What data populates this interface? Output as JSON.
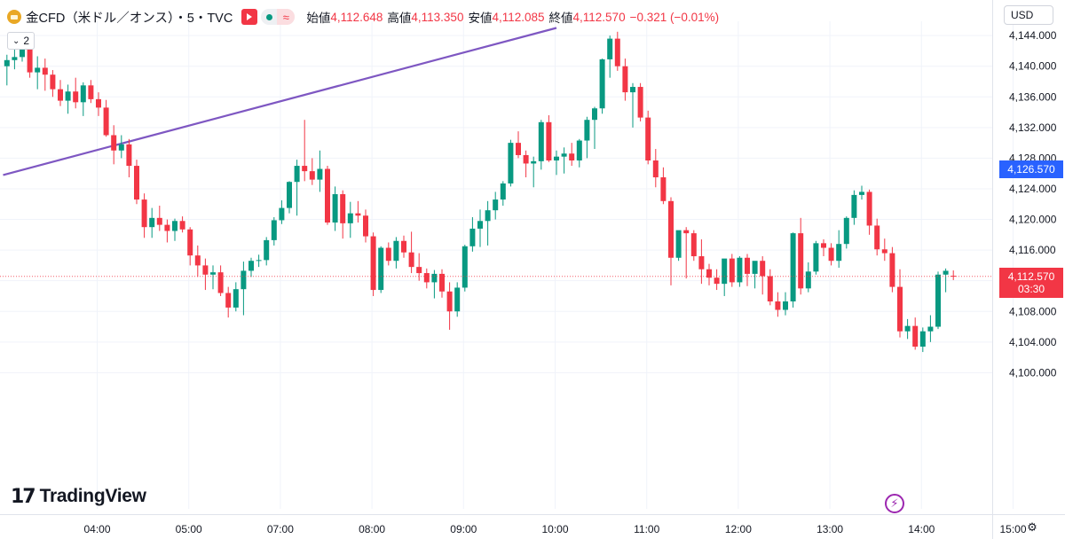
{
  "header": {
    "title": "金CFD（米ドル／オンス）・5・TVC",
    "open_label": "始値",
    "open_value": "4,112.648",
    "high_label": "高値",
    "high_value": "4,113.350",
    "low_label": "安値",
    "low_value": "4,112.085",
    "close_label": "終値",
    "close_value": "4,112.570",
    "change_value": "−0.321 (−0.01%)"
  },
  "indicator_count": "2",
  "currency": "USD",
  "logo_text": "TradingView",
  "colors": {
    "up": "#089981",
    "down": "#f23645",
    "trendline": "#7e57c2",
    "current_tag": "#f23645",
    "level_tag": "#2962ff",
    "grid": "#f0f3fa"
  },
  "price_tags": {
    "level_value": "4,126.570",
    "current_value": "4,112.570",
    "countdown": "03:30"
  },
  "chart_data": {
    "type": "candlestick",
    "title": "",
    "xlabel": "",
    "ylabel": "",
    "ylim": [
      4098.0,
      4145.0
    ],
    "y_ticks": [
      4100,
      4104,
      4108,
      4112,
      4116,
      4120,
      4124,
      4128,
      4132,
      4136,
      4140,
      4144
    ],
    "y_tick_labels": [
      "4,100.000",
      "4,104.000",
      "4,108.000",
      "4,112.000",
      "4,116.000",
      "4,120.000",
      "4,124.000",
      "4,128.000",
      "4,132.000",
      "4,136.000",
      "4,140.000",
      "4,144.000"
    ],
    "x_tick_labels": [
      {
        "bar": 12,
        "label": "04:00"
      },
      {
        "bar": 24,
        "label": "05:00"
      },
      {
        "bar": 36,
        "label": "07:00"
      },
      {
        "bar": 48,
        "label": "08:00"
      },
      {
        "bar": 60,
        "label": "09:00"
      },
      {
        "bar": 72,
        "label": "10:00"
      },
      {
        "bar": 84,
        "label": "11:00"
      },
      {
        "bar": 96,
        "label": "12:00"
      },
      {
        "bar": 108,
        "label": "13:00"
      },
      {
        "bar": 120,
        "label": "14:00"
      },
      {
        "bar": 132,
        "label": "15:00"
      }
    ],
    "grid": true,
    "candles_ohlc": [
      [
        4140.0,
        4141.5,
        4137.5,
        4140.8
      ],
      [
        4140.8,
        4142.6,
        4139.6,
        4141.2
      ],
      [
        4141.2,
        4143.0,
        4140.6,
        4142.2
      ],
      [
        4142.2,
        4143.3,
        4138.5,
        4139.2
      ],
      [
        4139.2,
        4141.3,
        4137.0,
        4139.8
      ],
      [
        4139.8,
        4141.0,
        4136.8,
        4138.9
      ],
      [
        4138.9,
        4139.5,
        4136.0,
        4137.0
      ],
      [
        4137.0,
        4138.2,
        4134.8,
        4135.5
      ],
      [
        4135.5,
        4137.6,
        4133.8,
        4136.7
      ],
      [
        4136.7,
        4138.5,
        4134.5,
        4135.3
      ],
      [
        4135.3,
        4137.9,
        4133.5,
        4137.5
      ],
      [
        4137.5,
        4138.2,
        4135.2,
        4135.7
      ],
      [
        4135.7,
        4136.6,
        4133.5,
        4134.6
      ],
      [
        4134.6,
        4135.6,
        4130.8,
        4131.0
      ],
      [
        4131.0,
        4132.3,
        4127.2,
        4129.0
      ],
      [
        4129.0,
        4131.0,
        4128.0,
        4129.8
      ],
      [
        4129.8,
        4130.5,
        4125.5,
        4127.0
      ],
      [
        4127.0,
        4127.8,
        4122.0,
        4122.6
      ],
      [
        4122.6,
        4123.4,
        4117.6,
        4119.0
      ],
      [
        4119.0,
        4121.5,
        4117.6,
        4120.2
      ],
      [
        4120.2,
        4121.8,
        4118.5,
        4119.3
      ],
      [
        4119.3,
        4120.0,
        4117.0,
        4118.5
      ],
      [
        4118.5,
        4120.1,
        4117.2,
        4119.8
      ],
      [
        4119.8,
        4120.4,
        4118.3,
        4118.7
      ],
      [
        4118.7,
        4119.0,
        4114.0,
        4115.3
      ],
      [
        4115.3,
        4116.6,
        4112.5,
        4114.0
      ],
      [
        4114.0,
        4114.9,
        4110.8,
        4112.8
      ],
      [
        4112.8,
        4114.0,
        4110.9,
        4113.1
      ],
      [
        4113.1,
        4114.0,
        4110.0,
        4110.4
      ],
      [
        4110.4,
        4111.2,
        4107.2,
        4108.5
      ],
      [
        4108.5,
        4111.8,
        4108.0,
        4110.9
      ],
      [
        4110.9,
        4114.5,
        4107.5,
        4113.3
      ],
      [
        4113.3,
        4115.0,
        4112.5,
        4114.6
      ],
      [
        4114.6,
        4115.4,
        4113.8,
        4114.7
      ],
      [
        4114.7,
        4117.7,
        4114.0,
        4117.3
      ],
      [
        4117.3,
        4120.3,
        4116.6,
        4119.9
      ],
      [
        4119.9,
        4122.5,
        4119.4,
        4121.5
      ],
      [
        4121.5,
        4125.0,
        4120.8,
        4124.9
      ],
      [
        4124.9,
        4127.8,
        4120.5,
        4127.0
      ],
      [
        4127.0,
        4133.0,
        4125.0,
        4126.3
      ],
      [
        4126.3,
        4128.0,
        4124.5,
        4125.2
      ],
      [
        4125.2,
        4129.0,
        4123.6,
        4126.6
      ],
      [
        4126.6,
        4127.0,
        4119.3,
        4119.6
      ],
      [
        4119.6,
        4124.3,
        4118.5,
        4123.3
      ],
      [
        4123.3,
        4123.8,
        4117.5,
        4119.5
      ],
      [
        4119.5,
        4122.3,
        4117.6,
        4120.8
      ],
      [
        4120.8,
        4122.4,
        4119.6,
        4120.5
      ],
      [
        4120.5,
        4121.3,
        4117.0,
        4117.8
      ],
      [
        4117.8,
        4118.3,
        4110.0,
        4110.8
      ],
      [
        4110.8,
        4116.5,
        4110.4,
        4116.3
      ],
      [
        4116.3,
        4117.0,
        4114.0,
        4114.6
      ],
      [
        4114.6,
        4117.7,
        4113.6,
        4117.2
      ],
      [
        4117.2,
        4117.9,
        4115.0,
        4115.7
      ],
      [
        4115.7,
        4118.4,
        4113.0,
        4113.8
      ],
      [
        4113.8,
        4115.6,
        4112.0,
        4113.0
      ],
      [
        4113.0,
        4113.6,
        4111.0,
        4111.8
      ],
      [
        4111.8,
        4113.4,
        4109.7,
        4112.9
      ],
      [
        4112.9,
        4113.5,
        4109.8,
        4110.6
      ],
      [
        4110.6,
        4111.8,
        4105.6,
        4108.0
      ],
      [
        4108.0,
        4111.8,
        4107.3,
        4111.1
      ],
      [
        4111.1,
        4116.7,
        4110.6,
        4116.5
      ],
      [
        4116.5,
        4120.3,
        4115.8,
        4118.8
      ],
      [
        4118.8,
        4121.3,
        4116.4,
        4119.8
      ],
      [
        4119.8,
        4122.4,
        4116.6,
        4121.2
      ],
      [
        4121.2,
        4123.6,
        4120.0,
        4122.6
      ],
      [
        4122.6,
        4125.0,
        4121.8,
        4124.7
      ],
      [
        4124.7,
        4130.4,
        4124.3,
        4130.0
      ],
      [
        4130.0,
        4131.5,
        4128.0,
        4128.4
      ],
      [
        4128.4,
        4129.0,
        4125.5,
        4127.3
      ],
      [
        4127.3,
        4128.2,
        4124.2,
        4127.6
      ],
      [
        4127.6,
        4133.0,
        4126.5,
        4132.7
      ],
      [
        4132.7,
        4133.6,
        4127.5,
        4127.7
      ],
      [
        4127.7,
        4129.0,
        4125.8,
        4128.2
      ],
      [
        4128.2,
        4129.4,
        4126.0,
        4128.6
      ],
      [
        4128.6,
        4130.0,
        4127.0,
        4127.7
      ],
      [
        4127.7,
        4130.5,
        4126.8,
        4130.3
      ],
      [
        4130.3,
        4133.4,
        4128.0,
        4133.0
      ],
      [
        4133.0,
        4134.7,
        4129.2,
        4134.5
      ],
      [
        4134.5,
        4141.0,
        4133.8,
        4140.9
      ],
      [
        4140.9,
        4144.0,
        4138.5,
        4143.6
      ],
      [
        4143.6,
        4144.5,
        4139.4,
        4140.0
      ],
      [
        4140.0,
        4141.0,
        4135.5,
        4136.6
      ],
      [
        4136.6,
        4137.8,
        4132.0,
        4137.3
      ],
      [
        4137.3,
        4137.8,
        4132.8,
        4133.3
      ],
      [
        4133.3,
        4134.2,
        4127.2,
        4127.7
      ],
      [
        4127.7,
        4129.2,
        4124.2,
        4125.5
      ],
      [
        4125.5,
        4126.8,
        4122.0,
        4122.4
      ],
      [
        4122.4,
        4122.9,
        4111.4,
        4115.0
      ],
      [
        4115.0,
        4118.3,
        4114.6,
        4118.6
      ],
      [
        4118.6,
        4119.0,
        4112.3,
        4118.2
      ],
      [
        4118.2,
        4118.6,
        4114.6,
        4115.2
      ],
      [
        4115.2,
        4117.4,
        4111.6,
        4113.5
      ],
      [
        4113.5,
        4114.2,
        4111.4,
        4112.4
      ],
      [
        4112.4,
        4113.5,
        4110.8,
        4111.6
      ],
      [
        4111.6,
        4113.6,
        4110.0,
        4114.9
      ],
      [
        4114.9,
        4115.5,
        4111.2,
        4111.8
      ],
      [
        4111.8,
        4115.2,
        4111.2,
        4115.0
      ],
      [
        4115.0,
        4115.5,
        4111.3,
        4112.9
      ],
      [
        4112.9,
        4114.2,
        4111.0,
        4114.6
      ],
      [
        4114.6,
        4115.2,
        4110.2,
        4112.6
      ],
      [
        4112.6,
        4113.5,
        4108.8,
        4109.3
      ],
      [
        4109.3,
        4110.5,
        4107.3,
        4108.2
      ],
      [
        4108.2,
        4110.5,
        4107.5,
        4109.3
      ],
      [
        4109.3,
        4118.3,
        4108.5,
        4118.2
      ],
      [
        4118.2,
        4120.2,
        4110.2,
        4111.0
      ],
      [
        4111.0,
        4114.4,
        4110.5,
        4113.2
      ],
      [
        4113.2,
        4117.2,
        4112.8,
        4116.9
      ],
      [
        4116.9,
        4117.4,
        4115.2,
        4116.3
      ],
      [
        4116.3,
        4116.9,
        4114.0,
        4114.6
      ],
      [
        4114.6,
        4118.6,
        4113.7,
        4116.8
      ],
      [
        4116.8,
        4120.4,
        4116.2,
        4120.2
      ],
      [
        4120.2,
        4123.8,
        4119.3,
        4123.2
      ],
      [
        4123.2,
        4124.4,
        4122.6,
        4123.6
      ],
      [
        4123.6,
        4123.9,
        4118.0,
        4119.2
      ],
      [
        4119.2,
        4120.1,
        4115.3,
        4116.1
      ],
      [
        4116.1,
        4117.5,
        4114.6,
        4115.6
      ],
      [
        4115.6,
        4116.4,
        4110.5,
        4111.2
      ],
      [
        4111.2,
        4113.5,
        4104.6,
        4105.4
      ],
      [
        4105.4,
        4107.0,
        4104.4,
        4106.1
      ],
      [
        4106.1,
        4107.2,
        4103.0,
        4103.4
      ],
      [
        4103.4,
        4105.9,
        4102.7,
        4105.4
      ],
      [
        4105.4,
        4107.5,
        4104.0,
        4106.0
      ],
      [
        4106.0,
        4113.2,
        4105.7,
        4112.8
      ],
      [
        4112.8,
        4113.6,
        4110.5,
        4113.3
      ],
      [
        4112.648,
        4113.35,
        4112.085,
        4112.57
      ]
    ],
    "trendline": {
      "from": {
        "bar": -0.5,
        "price": 4125.8
      },
      "to": {
        "bar": 72,
        "price": 4145.0
      }
    },
    "horizontal_levels": [
      {
        "price": 4126.57,
        "label": "4,126.570"
      },
      {
        "price": 4112.57,
        "label": "4,112.570"
      }
    ]
  }
}
